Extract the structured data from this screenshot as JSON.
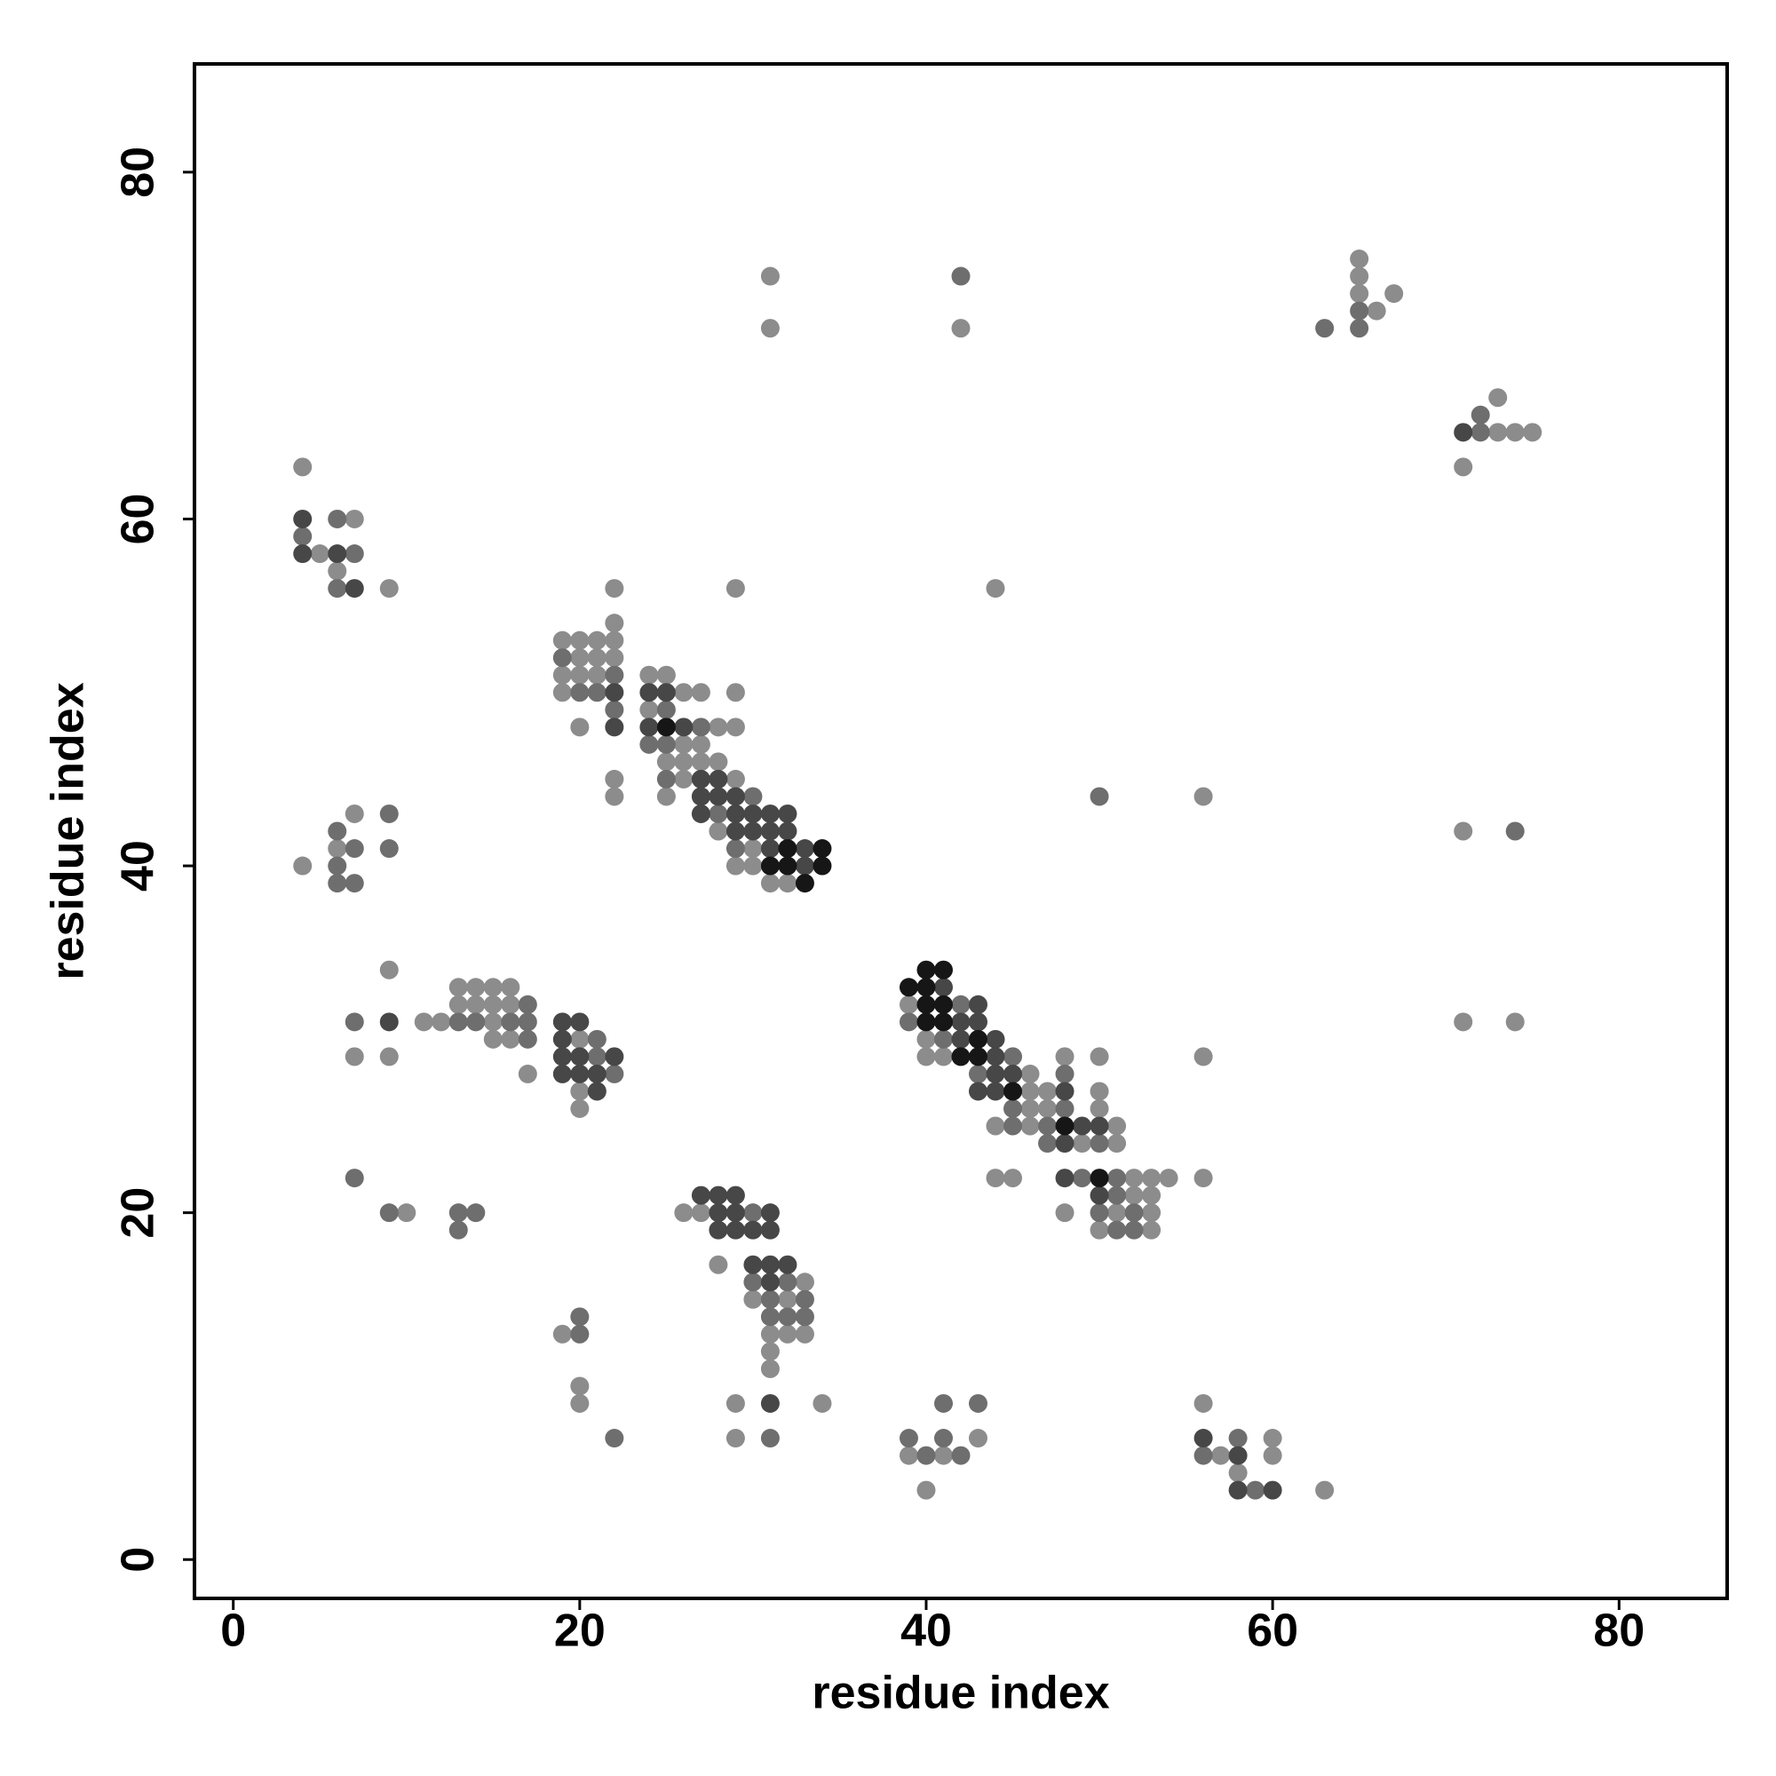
{
  "chart_data": {
    "type": "scatter",
    "xlabel": "residue index",
    "ylabel": "residue index",
    "xlim": [
      -2.24,
      86.24
    ],
    "ylim": [
      -2.24,
      86.24
    ],
    "xticks": [
      0,
      20,
      40,
      60,
      80
    ],
    "yticks": [
      0,
      20,
      40,
      60,
      80
    ],
    "series": [
      {
        "color": "#8c8c8c",
        "x": [
          65,
          31,
          65,
          65,
          67,
          66,
          31,
          42,
          73,
          73,
          74,
          75,
          4,
          71,
          7,
          5,
          6,
          9,
          22,
          29,
          44,
          22,
          19,
          20,
          21,
          22,
          20,
          21,
          22,
          19,
          20,
          21,
          24,
          25,
          19,
          26,
          27,
          29,
          24,
          20,
          28,
          29,
          26,
          27,
          25,
          26,
          27,
          28,
          22,
          26,
          29,
          22,
          25,
          56,
          7,
          28,
          71,
          6,
          30,
          4,
          29,
          30,
          31,
          32,
          9,
          13,
          14,
          15,
          16,
          13,
          14,
          15,
          16,
          39,
          11,
          12,
          15,
          71,
          74,
          15,
          16,
          20,
          40,
          7,
          9,
          40,
          41,
          48,
          50,
          56,
          17,
          46,
          20,
          46,
          47,
          50,
          20,
          46,
          47,
          50,
          44,
          46,
          51,
          49,
          51,
          44,
          45,
          52,
          53,
          54,
          56,
          52,
          53,
          10,
          26,
          27,
          48,
          51,
          53,
          50,
          53,
          28,
          33,
          30,
          32,
          19,
          31,
          32,
          33,
          31,
          31,
          20,
          20,
          29,
          34,
          56,
          29,
          43,
          60,
          39,
          41,
          57,
          60,
          58,
          40,
          63
        ],
        "values": [
          75,
          74,
          74,
          73,
          73,
          72,
          71,
          71,
          67,
          65,
          65,
          65,
          63,
          63,
          60,
          58,
          57,
          56,
          56,
          56,
          56,
          54,
          53,
          53,
          53,
          53,
          52,
          52,
          52,
          51,
          51,
          51,
          51,
          51,
          50,
          50,
          50,
          50,
          49,
          48,
          48,
          48,
          47,
          47,
          46,
          46,
          46,
          46,
          45,
          45,
          45,
          44,
          44,
          44,
          43,
          42,
          42,
          41,
          41,
          40,
          40,
          40,
          39,
          39,
          34,
          33,
          33,
          33,
          33,
          32,
          32,
          32,
          32,
          32,
          31,
          31,
          31,
          31,
          31,
          30,
          30,
          30,
          30,
          29,
          29,
          29,
          29,
          29,
          29,
          29,
          28,
          28,
          27,
          27,
          27,
          27,
          26,
          26,
          26,
          26,
          25,
          25,
          25,
          24,
          24,
          22,
          22,
          22,
          22,
          22,
          22,
          21,
          21,
          20,
          20,
          20,
          20,
          20,
          20,
          19,
          19,
          17,
          16,
          15,
          15,
          13,
          13,
          13,
          13,
          12,
          11,
          10,
          9,
          9,
          9,
          9,
          7,
          7,
          7,
          6,
          6,
          6,
          6,
          5,
          4,
          4
        ]
      },
      {
        "color": "#6e6e6e",
        "x": [
          42,
          65,
          63,
          65,
          72,
          72,
          4,
          6,
          7,
          6,
          19,
          22,
          20,
          21,
          25,
          22,
          27,
          24,
          25,
          25,
          50,
          30,
          9,
          28,
          6,
          74,
          7,
          9,
          29,
          6,
          6,
          7,
          42,
          17,
          7,
          13,
          14,
          16,
          17,
          39,
          17,
          21,
          41,
          21,
          45,
          22,
          43,
          48,
          45,
          48,
          45,
          47,
          47,
          50,
          7,
          49,
          51,
          51,
          9,
          13,
          14,
          30,
          50,
          52,
          13,
          51,
          52,
          30,
          32,
          31,
          33,
          20,
          31,
          32,
          33,
          20,
          41,
          43,
          22,
          31,
          39,
          41,
          58,
          40,
          42,
          56,
          59
        ],
        "values": [
          74,
          72,
          71,
          71,
          66,
          65,
          59,
          60,
          58,
          56,
          52,
          51,
          50,
          50,
          49,
          49,
          48,
          47,
          47,
          45,
          44,
          44,
          43,
          43,
          42,
          42,
          41,
          41,
          41,
          40,
          39,
          39,
          32,
          32,
          31,
          31,
          31,
          31,
          31,
          31,
          30,
          30,
          30,
          29,
          29,
          28,
          28,
          28,
          26,
          26,
          25,
          25,
          24,
          24,
          22,
          22,
          22,
          21,
          20,
          20,
          20,
          20,
          20,
          20,
          19,
          19,
          19,
          16,
          16,
          15,
          15,
          14,
          14,
          14,
          14,
          13,
          9,
          9,
          7,
          7,
          7,
          7,
          7,
          6,
          6,
          6,
          4
        ]
      },
      {
        "color": "#474747",
        "x": [
          71,
          4,
          4,
          6,
          7,
          22,
          24,
          25,
          22,
          24,
          26,
          27,
          28,
          27,
          28,
          29,
          27,
          29,
          30,
          31,
          32,
          29,
          30,
          31,
          32,
          31,
          33,
          33,
          41,
          43,
          9,
          19,
          20,
          42,
          43,
          19,
          42,
          44,
          19,
          20,
          22,
          44,
          19,
          20,
          21,
          44,
          45,
          21,
          43,
          44,
          48,
          49,
          50,
          48,
          48,
          27,
          28,
          29,
          50,
          28,
          29,
          31,
          28,
          29,
          30,
          31,
          30,
          31,
          32,
          31,
          31,
          56,
          58,
          58,
          60
        ],
        "values": [
          65,
          60,
          58,
          58,
          56,
          50,
          50,
          50,
          48,
          48,
          48,
          45,
          45,
          44,
          44,
          44,
          43,
          43,
          43,
          43,
          43,
          42,
          42,
          42,
          42,
          41,
          41,
          40,
          33,
          32,
          31,
          31,
          31,
          31,
          31,
          30,
          30,
          30,
          29,
          29,
          29,
          29,
          28,
          28,
          28,
          28,
          28,
          27,
          27,
          27,
          27,
          25,
          25,
          24,
          22,
          21,
          21,
          21,
          21,
          20,
          20,
          20,
          19,
          19,
          19,
          19,
          17,
          17,
          17,
          16,
          9,
          7,
          6,
          4,
          4
        ]
      },
      {
        "color": "#161616",
        "x": [
          25,
          32,
          34,
          31,
          32,
          34,
          33,
          40,
          41,
          39,
          40,
          40,
          41,
          40,
          41,
          43,
          42,
          43,
          45,
          48,
          50
        ],
        "values": [
          48,
          41,
          41,
          40,
          40,
          40,
          39,
          34,
          34,
          33,
          33,
          32,
          32,
          31,
          31,
          30,
          29,
          29,
          27,
          25,
          22
        ]
      }
    ]
  }
}
